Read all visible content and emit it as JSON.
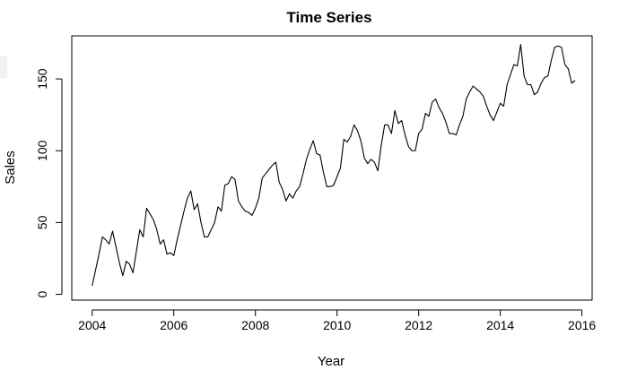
{
  "chart_data": {
    "type": "line",
    "title": "Time Series",
    "xlabel": "Year",
    "ylabel": "Sales",
    "xlim": [
      2003.5,
      2016.25
    ],
    "ylim": [
      -4,
      180
    ],
    "x_ticks": [
      2004,
      2006,
      2008,
      2010,
      2012,
      2014,
      2016
    ],
    "x_tick_labels": [
      "2004",
      "2006",
      "2008",
      "2010",
      "2012",
      "2014",
      "2016"
    ],
    "y_ticks": [
      0,
      50,
      100,
      150
    ],
    "y_tick_labels": [
      "0",
      "50",
      "100",
      "150"
    ],
    "grid": false,
    "x_start": 2004,
    "x_step_months": 1,
    "series": [
      {
        "color": "#000000",
        "values": [
          6,
          17,
          28,
          40,
          38,
          35,
          44,
          33,
          22,
          13,
          23,
          21,
          15,
          30,
          45,
          40,
          60,
          56,
          52,
          45,
          35,
          38,
          28,
          29,
          27,
          38,
          48,
          58,
          67,
          72,
          59,
          63,
          50,
          40,
          40,
          45,
          50,
          61,
          58,
          76,
          77,
          82,
          80,
          65,
          61,
          58,
          57,
          55,
          60,
          67,
          81,
          84,
          87,
          90,
          92,
          78,
          73,
          65,
          70,
          67,
          72,
          75,
          84,
          94,
          101,
          107,
          98,
          97,
          85,
          75,
          75,
          76,
          82,
          88,
          108,
          106,
          110,
          118,
          114,
          107,
          95,
          91,
          94,
          92,
          86,
          104,
          118,
          118,
          112,
          128,
          119,
          121,
          111,
          103,
          100,
          100,
          112,
          115,
          126,
          124,
          134,
          136,
          130,
          126,
          120,
          112,
          112,
          111,
          118,
          124,
          136,
          141,
          145,
          143,
          141,
          138,
          131,
          125,
          121,
          127,
          133,
          131,
          146,
          153,
          160,
          159,
          174,
          152,
          146,
          146,
          139,
          141,
          147,
          151,
          152,
          163,
          172,
          173,
          172,
          160,
          157,
          147,
          149
        ]
      }
    ]
  }
}
